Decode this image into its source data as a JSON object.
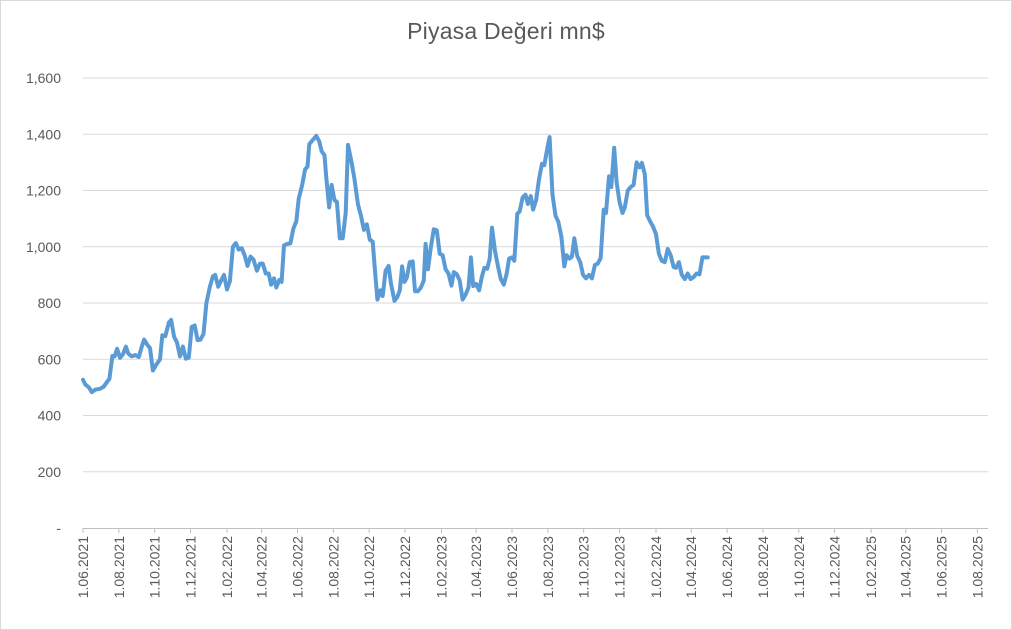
{
  "chart_data": {
    "type": "line",
    "title": "Piyasa Değeri mn$",
    "xlabel": "",
    "ylabel": "",
    "ylim": [
      0,
      1600
    ],
    "y_ticks": [
      {
        "value": 0,
        "label": "-"
      },
      {
        "value": 200,
        "label": "200"
      },
      {
        "value": 400,
        "label": "400"
      },
      {
        "value": 600,
        "label": "600"
      },
      {
        "value": 800,
        "label": "800"
      },
      {
        "value": 1000,
        "label": "1,000"
      },
      {
        "value": 1200,
        "label": "1,200"
      },
      {
        "value": 1400,
        "label": "1,400"
      },
      {
        "value": 1600,
        "label": "1,600"
      }
    ],
    "x_ticks": [
      {
        "date": "2021-06-01",
        "label": "1.06.2021"
      },
      {
        "date": "2021-08-01",
        "label": "1.08.2021"
      },
      {
        "date": "2021-10-01",
        "label": "1.10.2021"
      },
      {
        "date": "2021-12-01",
        "label": "1.12.2021"
      },
      {
        "date": "2022-02-01",
        "label": "1.02.2022"
      },
      {
        "date": "2022-04-01",
        "label": "1.04.2022"
      },
      {
        "date": "2022-06-01",
        "label": "1.06.2022"
      },
      {
        "date": "2022-08-01",
        "label": "1.08.2022"
      },
      {
        "date": "2022-10-01",
        "label": "1.10.2022"
      },
      {
        "date": "2022-12-01",
        "label": "1.12.2022"
      },
      {
        "date": "2023-02-01",
        "label": "1.02.2023"
      },
      {
        "date": "2023-04-01",
        "label": "1.04.2023"
      },
      {
        "date": "2023-06-01",
        "label": "1.06.2023"
      },
      {
        "date": "2023-08-01",
        "label": "1.08.2023"
      },
      {
        "date": "2023-10-01",
        "label": "1.10.2023"
      },
      {
        "date": "2023-12-01",
        "label": "1.12.2023"
      },
      {
        "date": "2024-02-01",
        "label": "1.02.2024"
      },
      {
        "date": "2024-04-01",
        "label": "1.04.2024"
      },
      {
        "date": "2024-06-01",
        "label": "1.06.2024"
      },
      {
        "date": "2024-08-01",
        "label": "1.08.2024"
      },
      {
        "date": "2024-10-01",
        "label": "1.10.2024"
      },
      {
        "date": "2024-12-01",
        "label": "1.12.2024"
      },
      {
        "date": "2025-02-01",
        "label": "1.02.2025"
      },
      {
        "date": "2025-04-01",
        "label": "1.04.2025"
      },
      {
        "date": "2025-06-01",
        "label": "1.06.2025"
      },
      {
        "date": "2025-08-01",
        "label": "1.08.2025"
      }
    ],
    "x_range": [
      "2021-06-01",
      "2025-08-19"
    ],
    "grid": true,
    "legend": "none",
    "series": [
      {
        "color": "#5b9bd5",
        "points": [
          [
            "2021-06-01",
            527
          ],
          [
            "2021-06-05",
            510
          ],
          [
            "2021-06-11",
            500
          ],
          [
            "2021-06-16",
            483
          ],
          [
            "2021-06-22",
            492
          ],
          [
            "2021-06-30",
            495
          ],
          [
            "2021-07-06",
            502
          ],
          [
            "2021-07-12",
            520
          ],
          [
            "2021-07-16",
            530
          ],
          [
            "2021-07-21",
            612
          ],
          [
            "2021-07-25",
            610
          ],
          [
            "2021-07-29",
            637
          ],
          [
            "2021-08-03",
            605
          ],
          [
            "2021-08-08",
            618
          ],
          [
            "2021-08-13",
            645
          ],
          [
            "2021-08-17",
            620
          ],
          [
            "2021-08-23",
            610
          ],
          [
            "2021-08-29",
            615
          ],
          [
            "2021-09-04",
            608
          ],
          [
            "2021-09-09",
            645
          ],
          [
            "2021-09-13",
            670
          ],
          [
            "2021-09-19",
            650
          ],
          [
            "2021-09-23",
            640
          ],
          [
            "2021-09-28",
            560
          ],
          [
            "2021-10-04",
            582
          ],
          [
            "2021-10-10",
            600
          ],
          [
            "2021-10-14",
            685
          ],
          [
            "2021-10-19",
            682
          ],
          [
            "2021-10-25",
            730
          ],
          [
            "2021-10-29",
            740
          ],
          [
            "2021-11-03",
            680
          ],
          [
            "2021-11-08",
            660
          ],
          [
            "2021-11-13",
            610
          ],
          [
            "2021-11-18",
            645
          ],
          [
            "2021-11-23",
            602
          ],
          [
            "2021-11-28",
            606
          ],
          [
            "2021-12-03",
            715
          ],
          [
            "2021-12-08",
            720
          ],
          [
            "2021-12-13",
            668
          ],
          [
            "2021-12-18",
            670
          ],
          [
            "2021-12-23",
            690
          ],
          [
            "2021-12-28",
            800
          ],
          [
            "2022-01-03",
            858
          ],
          [
            "2022-01-08",
            895
          ],
          [
            "2022-01-12",
            900
          ],
          [
            "2022-01-17",
            858
          ],
          [
            "2022-01-22",
            880
          ],
          [
            "2022-01-27",
            900
          ],
          [
            "2022-02-01",
            848
          ],
          [
            "2022-02-06",
            878
          ],
          [
            "2022-02-11",
            1000
          ],
          [
            "2022-02-16",
            1013
          ],
          [
            "2022-02-21",
            990
          ],
          [
            "2022-02-26",
            995
          ],
          [
            "2022-03-03",
            970
          ],
          [
            "2022-03-08",
            932
          ],
          [
            "2022-03-13",
            965
          ],
          [
            "2022-03-18",
            955
          ],
          [
            "2022-03-24",
            915
          ],
          [
            "2022-03-29",
            940
          ],
          [
            "2022-04-03",
            940
          ],
          [
            "2022-04-08",
            905
          ],
          [
            "2022-04-13",
            905
          ],
          [
            "2022-04-17",
            865
          ],
          [
            "2022-04-22",
            888
          ],
          [
            "2022-04-26",
            855
          ],
          [
            "2022-05-01",
            882
          ],
          [
            "2022-05-05",
            875
          ],
          [
            "2022-05-09",
            1005
          ],
          [
            "2022-05-15",
            1010
          ],
          [
            "2022-05-20",
            1012
          ],
          [
            "2022-05-25",
            1065
          ],
          [
            "2022-05-30",
            1090
          ],
          [
            "2022-06-03",
            1170
          ],
          [
            "2022-06-09",
            1220
          ],
          [
            "2022-06-14",
            1275
          ],
          [
            "2022-06-18",
            1285
          ],
          [
            "2022-06-21",
            1365
          ],
          [
            "2022-06-25",
            1375
          ],
          [
            "2022-07-03",
            1394
          ],
          [
            "2022-07-08",
            1375
          ],
          [
            "2022-07-12",
            1340
          ],
          [
            "2022-07-17",
            1325
          ],
          [
            "2022-07-20",
            1245
          ],
          [
            "2022-07-25",
            1140
          ],
          [
            "2022-07-29",
            1220
          ],
          [
            "2022-08-03",
            1165
          ],
          [
            "2022-08-07",
            1160
          ],
          [
            "2022-08-12",
            1030
          ],
          [
            "2022-08-17",
            1030
          ],
          [
            "2022-08-22",
            1120
          ],
          [
            "2022-08-26",
            1362
          ],
          [
            "2022-09-01",
            1300
          ],
          [
            "2022-09-06",
            1240
          ],
          [
            "2022-09-12",
            1150
          ],
          [
            "2022-09-17",
            1110
          ],
          [
            "2022-09-22",
            1060
          ],
          [
            "2022-09-27",
            1080
          ],
          [
            "2022-10-02",
            1025
          ],
          [
            "2022-10-07",
            1018
          ],
          [
            "2022-10-11",
            910
          ],
          [
            "2022-10-15",
            812
          ],
          [
            "2022-10-20",
            845
          ],
          [
            "2022-10-24",
            825
          ],
          [
            "2022-10-29",
            915
          ],
          [
            "2022-11-03",
            932
          ],
          [
            "2022-11-07",
            870
          ],
          [
            "2022-11-13",
            808
          ],
          [
            "2022-11-18",
            822
          ],
          [
            "2022-11-22",
            845
          ],
          [
            "2022-11-26",
            930
          ],
          [
            "2022-11-30",
            875
          ],
          [
            "2022-12-04",
            890
          ],
          [
            "2022-12-09",
            945
          ],
          [
            "2022-12-14",
            948
          ],
          [
            "2022-12-18",
            842
          ],
          [
            "2022-12-23",
            842
          ],
          [
            "2022-12-28",
            855
          ],
          [
            "2023-01-02",
            880
          ],
          [
            "2023-01-05",
            1010
          ],
          [
            "2023-01-09",
            920
          ],
          [
            "2023-01-14",
            1000
          ],
          [
            "2023-01-19",
            1062
          ],
          [
            "2023-01-24",
            1058
          ],
          [
            "2023-01-29",
            975
          ],
          [
            "2023-02-03",
            970
          ],
          [
            "2023-02-08",
            920
          ],
          [
            "2023-02-13",
            905
          ],
          [
            "2023-02-18",
            862
          ],
          [
            "2023-02-22",
            910
          ],
          [
            "2023-02-27",
            902
          ],
          [
            "2023-03-04",
            880
          ],
          [
            "2023-03-09",
            812
          ],
          [
            "2023-03-14",
            830
          ],
          [
            "2023-03-19",
            855
          ],
          [
            "2023-03-23",
            962
          ],
          [
            "2023-03-27",
            860
          ],
          [
            "2023-04-01",
            868
          ],
          [
            "2023-04-06",
            845
          ],
          [
            "2023-04-11",
            895
          ],
          [
            "2023-04-15",
            925
          ],
          [
            "2023-04-20",
            922
          ],
          [
            "2023-04-24",
            958
          ],
          [
            "2023-04-28",
            1068
          ],
          [
            "2023-05-03",
            985
          ],
          [
            "2023-05-08",
            932
          ],
          [
            "2023-05-13",
            885
          ],
          [
            "2023-05-18",
            865
          ],
          [
            "2023-05-23",
            905
          ],
          [
            "2023-05-27",
            958
          ],
          [
            "2023-06-01",
            962
          ],
          [
            "2023-06-05",
            950
          ],
          [
            "2023-06-10",
            1118
          ],
          [
            "2023-06-14",
            1125
          ],
          [
            "2023-06-19",
            1175
          ],
          [
            "2023-06-24",
            1185
          ],
          [
            "2023-06-28",
            1152
          ],
          [
            "2023-07-03",
            1180
          ],
          [
            "2023-07-07",
            1132
          ],
          [
            "2023-07-12",
            1165
          ],
          [
            "2023-07-17",
            1240
          ],
          [
            "2023-07-22",
            1295
          ],
          [
            "2023-07-26",
            1290
          ],
          [
            "2023-07-31",
            1350
          ],
          [
            "2023-08-04",
            1390
          ],
          [
            "2023-08-09",
            1185
          ],
          [
            "2023-08-14",
            1110
          ],
          [
            "2023-08-19",
            1088
          ],
          [
            "2023-08-24",
            1035
          ],
          [
            "2023-08-29",
            930
          ],
          [
            "2023-09-02",
            970
          ],
          [
            "2023-09-07",
            958
          ],
          [
            "2023-09-11",
            965
          ],
          [
            "2023-09-15",
            1030
          ],
          [
            "2023-09-20",
            968
          ],
          [
            "2023-09-25",
            945
          ],
          [
            "2023-09-30",
            900
          ],
          [
            "2023-10-05",
            888
          ],
          [
            "2023-10-10",
            900
          ],
          [
            "2023-10-15",
            888
          ],
          [
            "2023-10-20",
            935
          ],
          [
            "2023-10-25",
            940
          ],
          [
            "2023-10-30",
            960
          ],
          [
            "2023-11-04",
            1132
          ],
          [
            "2023-11-08",
            1120
          ],
          [
            "2023-11-13",
            1250
          ],
          [
            "2023-11-17",
            1212
          ],
          [
            "2023-11-22",
            1352
          ],
          [
            "2023-11-26",
            1230
          ],
          [
            "2023-12-01",
            1160
          ],
          [
            "2023-12-06",
            1120
          ],
          [
            "2023-12-10",
            1140
          ],
          [
            "2023-12-15",
            1200
          ],
          [
            "2023-12-20",
            1212
          ],
          [
            "2023-12-25",
            1220
          ],
          [
            "2023-12-30",
            1300
          ],
          [
            "2024-01-04",
            1282
          ],
          [
            "2024-01-08",
            1298
          ],
          [
            "2024-01-13",
            1258
          ],
          [
            "2024-01-17",
            1112
          ],
          [
            "2024-01-22",
            1090
          ],
          [
            "2024-01-27",
            1072
          ],
          [
            "2024-02-01",
            1045
          ],
          [
            "2024-02-06",
            975
          ],
          [
            "2024-02-11",
            950
          ],
          [
            "2024-02-16",
            945
          ],
          [
            "2024-02-21",
            992
          ],
          [
            "2024-02-26",
            970
          ],
          [
            "2024-03-02",
            928
          ],
          [
            "2024-03-06",
            925
          ],
          [
            "2024-03-11",
            945
          ],
          [
            "2024-03-16",
            900
          ],
          [
            "2024-03-21",
            885
          ],
          [
            "2024-03-26",
            905
          ],
          [
            "2024-03-31",
            885
          ],
          [
            "2024-04-05",
            892
          ],
          [
            "2024-04-10",
            905
          ],
          [
            "2024-04-15",
            902
          ],
          [
            "2024-04-20",
            962
          ],
          [
            "2024-04-25",
            962
          ],
          [
            "2024-04-29",
            962
          ]
        ]
      }
    ]
  }
}
